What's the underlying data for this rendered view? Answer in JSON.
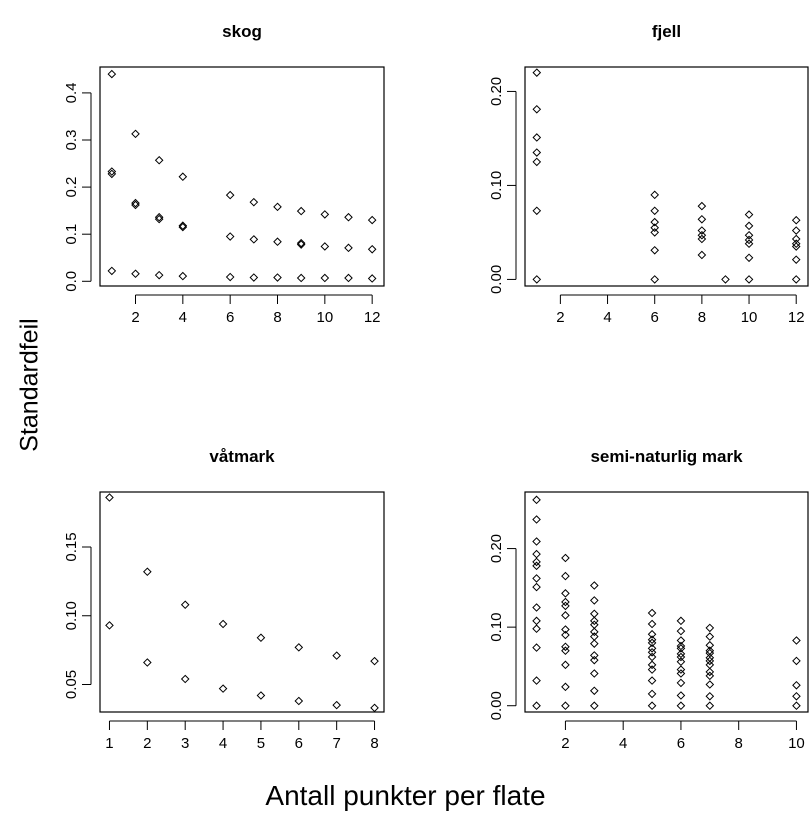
{
  "figure": {
    "ylabel": "Standardfeil",
    "xlabel": "Antall punkter per flate"
  },
  "chart_data": [
    {
      "type": "scatter",
      "title": "skog",
      "xlim": [
        0.5,
        12.5
      ],
      "ylim": [
        -0.01,
        0.455
      ],
      "xticks": [
        2,
        4,
        6,
        8,
        10,
        12
      ],
      "yticks": [
        0.0,
        0.1,
        0.2,
        0.3,
        0.4
      ],
      "ytick_labels": [
        "0.0",
        "0.1",
        "0.2",
        "0.3",
        "0.4"
      ],
      "points": [
        [
          1,
          0.44
        ],
        [
          1,
          0.233
        ],
        [
          1,
          0.228
        ],
        [
          1,
          0.022
        ],
        [
          2,
          0.313
        ],
        [
          2,
          0.166
        ],
        [
          2,
          0.162
        ],
        [
          2,
          0.016
        ],
        [
          3,
          0.257
        ],
        [
          3,
          0.136
        ],
        [
          3,
          0.132
        ],
        [
          3,
          0.013
        ],
        [
          4,
          0.222
        ],
        [
          4,
          0.118
        ],
        [
          4,
          0.115
        ],
        [
          4,
          0.011
        ],
        [
          6,
          0.183
        ],
        [
          6,
          0.095
        ],
        [
          6,
          0.009
        ],
        [
          7,
          0.168
        ],
        [
          7,
          0.089
        ],
        [
          7,
          0.008
        ],
        [
          8,
          0.158
        ],
        [
          8,
          0.084
        ],
        [
          8,
          0.008
        ],
        [
          9,
          0.149
        ],
        [
          9,
          0.081
        ],
        [
          9,
          0.078
        ],
        [
          9,
          0.007
        ],
        [
          10,
          0.142
        ],
        [
          10,
          0.074
        ],
        [
          10,
          0.007
        ],
        [
          11,
          0.136
        ],
        [
          11,
          0.071
        ],
        [
          11,
          0.007
        ],
        [
          12,
          0.13
        ],
        [
          12,
          0.068
        ],
        [
          12,
          0.006
        ]
      ]
    },
    {
      "type": "scatter",
      "title": "fjell",
      "xlim": [
        0.5,
        12.5
      ],
      "ylim": [
        -0.007,
        0.226
      ],
      "xticks": [
        2,
        4,
        6,
        8,
        10,
        12
      ],
      "yticks": [
        0.0,
        0.1,
        0.2
      ],
      "ytick_labels": [
        "0.00",
        "0.10",
        "0.20"
      ],
      "points": [
        [
          1,
          0.22
        ],
        [
          1,
          0.181
        ],
        [
          1,
          0.151
        ],
        [
          1,
          0.135
        ],
        [
          1,
          0.125
        ],
        [
          1,
          0.073
        ],
        [
          1,
          0.0
        ],
        [
          6,
          0.09
        ],
        [
          6,
          0.073
        ],
        [
          6,
          0.061
        ],
        [
          6,
          0.055
        ],
        [
          6,
          0.05
        ],
        [
          6,
          0.031
        ],
        [
          6,
          0.0
        ],
        [
          8,
          0.078
        ],
        [
          8,
          0.064
        ],
        [
          8,
          0.052
        ],
        [
          8,
          0.047
        ],
        [
          8,
          0.043
        ],
        [
          8,
          0.026
        ],
        [
          9,
          0.0
        ],
        [
          10,
          0.069
        ],
        [
          10,
          0.057
        ],
        [
          10,
          0.047
        ],
        [
          10,
          0.042
        ],
        [
          10,
          0.038
        ],
        [
          10,
          0.023
        ],
        [
          10,
          0.0
        ],
        [
          12,
          0.063
        ],
        [
          12,
          0.052
        ],
        [
          12,
          0.043
        ],
        [
          12,
          0.038
        ],
        [
          12,
          0.035
        ],
        [
          12,
          0.021
        ],
        [
          12,
          0.0
        ]
      ]
    },
    {
      "type": "scatter",
      "title": "våtmark",
      "xlim": [
        0.75,
        8.25
      ],
      "ylim": [
        0.03,
        0.19
      ],
      "xticks": [
        1,
        2,
        3,
        4,
        5,
        6,
        7,
        8
      ],
      "yticks": [
        0.05,
        0.1,
        0.15
      ],
      "ytick_labels": [
        "0.05",
        "0.10",
        "0.15"
      ],
      "points": [
        [
          1,
          0.186
        ],
        [
          1,
          0.093
        ],
        [
          2,
          0.132
        ],
        [
          2,
          0.066
        ],
        [
          3,
          0.108
        ],
        [
          3,
          0.054
        ],
        [
          4,
          0.094
        ],
        [
          4,
          0.047
        ],
        [
          5,
          0.084
        ],
        [
          5,
          0.042
        ],
        [
          6,
          0.077
        ],
        [
          6,
          0.038
        ],
        [
          7,
          0.071
        ],
        [
          7,
          0.035
        ],
        [
          8,
          0.067
        ],
        [
          8,
          0.033
        ]
      ]
    },
    {
      "type": "scatter",
      "title": "semi-naturlig mark",
      "xlim": [
        0.6,
        10.4
      ],
      "ylim": [
        -0.008,
        0.272
      ],
      "xticks": [
        2,
        4,
        6,
        8,
        10
      ],
      "yticks": [
        0.0,
        0.1,
        0.2
      ],
      "ytick_labels": [
        "0.00",
        "0.10",
        "0.20"
      ],
      "points": [
        [
          1,
          0.262
        ],
        [
          1,
          0.237
        ],
        [
          1,
          0.209
        ],
        [
          1,
          0.193
        ],
        [
          1,
          0.183
        ],
        [
          1,
          0.178
        ],
        [
          1,
          0.162
        ],
        [
          1,
          0.151
        ],
        [
          1,
          0.125
        ],
        [
          1,
          0.108
        ],
        [
          1,
          0.098
        ],
        [
          1,
          0.074
        ],
        [
          1,
          0.032
        ],
        [
          1,
          0.0
        ],
        [
          2,
          0.188
        ],
        [
          2,
          0.165
        ],
        [
          2,
          0.143
        ],
        [
          2,
          0.132
        ],
        [
          2,
          0.127
        ],
        [
          2,
          0.115
        ],
        [
          2,
          0.097
        ],
        [
          2,
          0.09
        ],
        [
          2,
          0.075
        ],
        [
          2,
          0.07
        ],
        [
          2,
          0.052
        ],
        [
          2,
          0.024
        ],
        [
          2,
          0.0
        ],
        [
          3,
          0.153
        ],
        [
          3,
          0.134
        ],
        [
          3,
          0.117
        ],
        [
          3,
          0.108
        ],
        [
          3,
          0.103
        ],
        [
          3,
          0.094
        ],
        [
          3,
          0.088
        ],
        [
          3,
          0.079
        ],
        [
          3,
          0.064
        ],
        [
          3,
          0.058
        ],
        [
          3,
          0.041
        ],
        [
          3,
          0.019
        ],
        [
          3,
          0.0
        ],
        [
          5,
          0.118
        ],
        [
          5,
          0.104
        ],
        [
          5,
          0.091
        ],
        [
          5,
          0.084
        ],
        [
          5,
          0.08
        ],
        [
          5,
          0.073
        ],
        [
          5,
          0.068
        ],
        [
          5,
          0.062
        ],
        [
          5,
          0.052
        ],
        [
          5,
          0.046
        ],
        [
          5,
          0.032
        ],
        [
          5,
          0.015
        ],
        [
          5,
          0.0
        ],
        [
          6,
          0.108
        ],
        [
          6,
          0.095
        ],
        [
          6,
          0.083
        ],
        [
          6,
          0.076
        ],
        [
          6,
          0.073
        ],
        [
          6,
          0.066
        ],
        [
          6,
          0.062
        ],
        [
          6,
          0.056
        ],
        [
          6,
          0.046
        ],
        [
          6,
          0.041
        ],
        [
          6,
          0.029
        ],
        [
          6,
          0.013
        ],
        [
          6,
          0.0
        ],
        [
          7,
          0.099
        ],
        [
          7,
          0.088
        ],
        [
          7,
          0.077
        ],
        [
          7,
          0.07
        ],
        [
          7,
          0.067
        ],
        [
          7,
          0.061
        ],
        [
          7,
          0.057
        ],
        [
          7,
          0.052
        ],
        [
          7,
          0.043
        ],
        [
          7,
          0.038
        ],
        [
          7,
          0.027
        ],
        [
          7,
          0.012
        ],
        [
          7,
          0.0
        ],
        [
          10,
          0.083
        ],
        [
          10,
          0.057
        ],
        [
          10,
          0.026
        ],
        [
          10,
          0.012
        ],
        [
          10,
          0.0
        ]
      ]
    }
  ]
}
